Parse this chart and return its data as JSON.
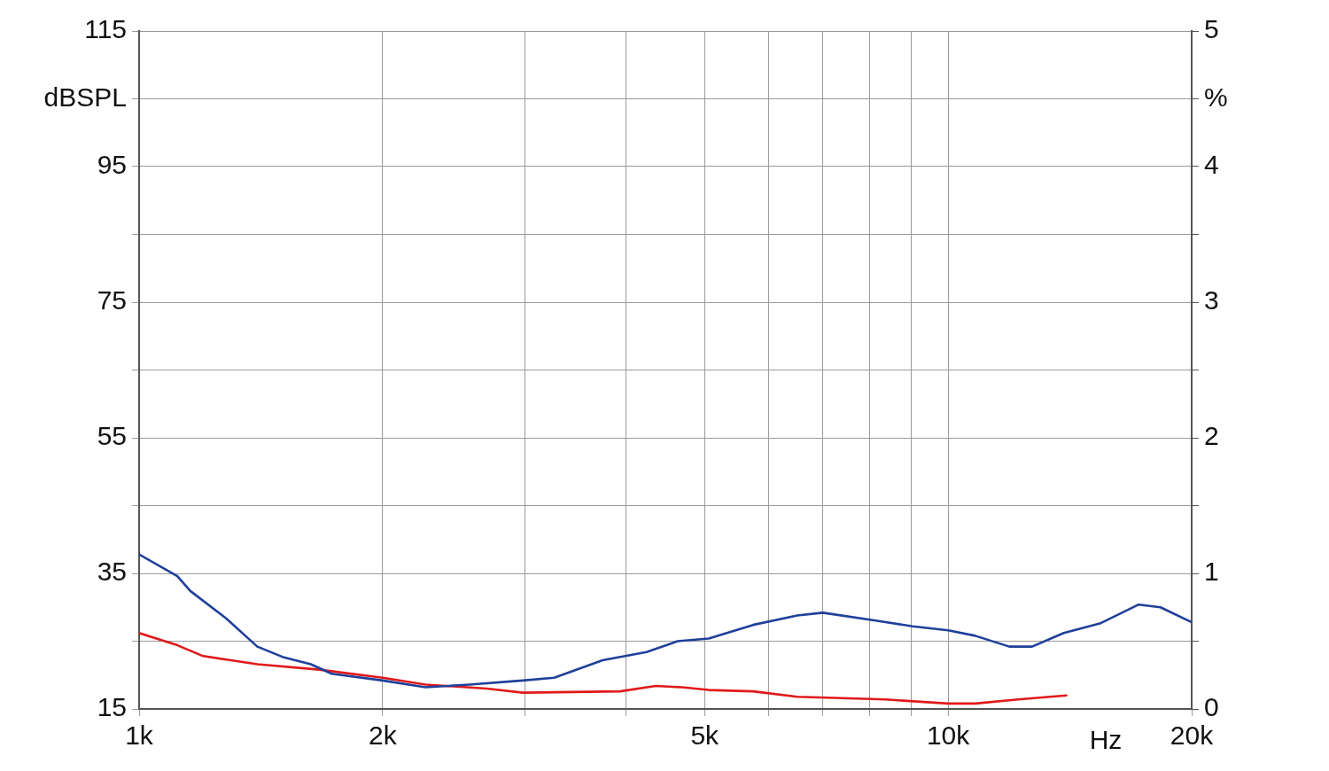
{
  "chart_data": {
    "type": "line",
    "ylabel": "dBSPL",
    "y2label": "%",
    "xlabel": "Hz",
    "log": "x",
    "grid": true,
    "legend": false,
    "marker": "none",
    "line_style": "solid",
    "xlim": [
      1000,
      20000
    ],
    "xticks": [
      {
        "value": 1000,
        "label": "1k"
      },
      {
        "value": 2000,
        "label": "2k"
      },
      {
        "value": 3000,
        "label": null
      },
      {
        "value": 4000,
        "label": null
      },
      {
        "value": 5000,
        "label": "5k"
      },
      {
        "value": 6000,
        "label": null
      },
      {
        "value": 7000,
        "label": null
      },
      {
        "value": 8000,
        "label": null
      },
      {
        "value": 9000,
        "label": null
      },
      {
        "value": 10000,
        "label": "10k"
      },
      {
        "value": 20000,
        "label": "20k"
      }
    ],
    "ylim": [
      15,
      115
    ],
    "yticks": [
      15,
      {
        "value": 25,
        "label": null
      },
      35,
      {
        "value": 45,
        "label": null
      },
      55,
      {
        "value": 65,
        "label": null
      },
      75,
      {
        "value": 85,
        "label": null
      },
      95,
      {
        "value": 105,
        "label": null
      },
      115
    ],
    "y2lim": [
      0,
      5
    ],
    "y2ticks": [
      0,
      {
        "value": 0.5,
        "label": null
      },
      1,
      {
        "value": 1.5,
        "label": null
      },
      2,
      {
        "value": 2.5,
        "label": null
      },
      3,
      {
        "value": 3.5,
        "label": null
      },
      4,
      {
        "value": 4.5,
        "label": null
      },
      5
    ],
    "series": [
      {
        "color": "#1f3f9a",
        "axis": "y2",
        "x": [
          1000,
          1115,
          1157,
          1280,
          1400,
          1510,
          1630,
          1730,
          2000,
          2260,
          2560,
          2980,
          3260,
          3740,
          4240,
          4630,
          5060,
          5740,
          6510,
          7000,
          8170,
          9040,
          10000,
          10800,
          11900,
          12700,
          13900,
          15400,
          17200,
          18300,
          20000
        ],
        "values": [
          1.14,
          0.98,
          0.87,
          0.67,
          0.46,
          0.38,
          0.33,
          0.26,
          0.21,
          0.16,
          0.18,
          0.21,
          0.23,
          0.36,
          0.42,
          0.5,
          0.52,
          0.62,
          0.69,
          0.71,
          0.65,
          0.61,
          0.58,
          0.54,
          0.46,
          0.46,
          0.56,
          0.63,
          0.77,
          0.75,
          0.64
        ]
      },
      {
        "color": "#e0191b",
        "axis": "y2",
        "x": [
          1000,
          1115,
          1200,
          1400,
          1670,
          2000,
          2260,
          2690,
          2980,
          3930,
          4350,
          4690,
          5060,
          5740,
          6510,
          8370,
          10000,
          10800,
          12200,
          14000
        ],
        "values": [
          0.56,
          0.47,
          0.39,
          0.33,
          0.29,
          0.23,
          0.18,
          0.15,
          0.12,
          0.13,
          0.17,
          0.16,
          0.14,
          0.13,
          0.09,
          0.07,
          0.04,
          0.04,
          0.07,
          0.1
        ]
      }
    ]
  }
}
